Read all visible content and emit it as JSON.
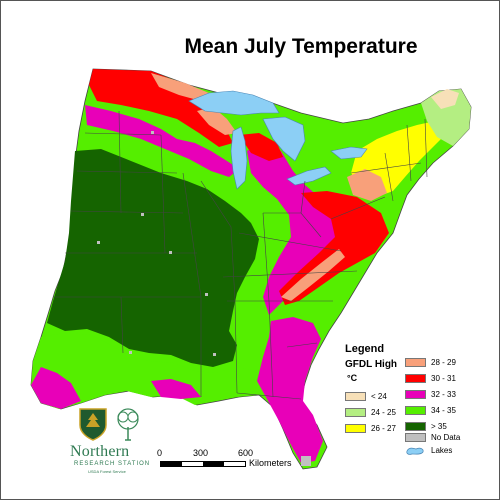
{
  "title": "Mean July Temperature",
  "legend": {
    "title": "Legend",
    "model": "GFDL High",
    "unit": "°C",
    "classes": [
      {
        "label": "< 24",
        "color": "#f7e0b8"
      },
      {
        "label": "24 - 25",
        "color": "#b4ee82"
      },
      {
        "label": "26 - 27",
        "color": "#ffff00"
      },
      {
        "label": "28 - 29",
        "color": "#f8a07a"
      },
      {
        "label": "30 - 31",
        "color": "#ff0000"
      },
      {
        "label": "32 - 33",
        "color": "#e800b8"
      },
      {
        "label": "34 - 35",
        "color": "#55ee00"
      },
      {
        "label": "> 35",
        "color": "#156400"
      },
      {
        "label": "No Data",
        "color": "#c0c0c0"
      },
      {
        "label": "Lakes",
        "color": "#8ccff5"
      }
    ]
  },
  "scale": {
    "ticks": [
      "0",
      "300",
      "600"
    ],
    "unit": "Kilometers"
  },
  "logo": {
    "name": "Northern",
    "line2": "RESEARCH STATION",
    "line3": "USDA Forest Service"
  },
  "colors": {
    "lt24": "#f7e0b8",
    "c24_25": "#b4ee82",
    "c26_27": "#ffff00",
    "c28_29": "#f8a07a",
    "c30_31": "#ff0000",
    "c32_33": "#e800b8",
    "c34_35": "#55ee00",
    "gt35": "#156400",
    "nodata": "#c0c0c0",
    "lakes": "#8ccff5"
  }
}
